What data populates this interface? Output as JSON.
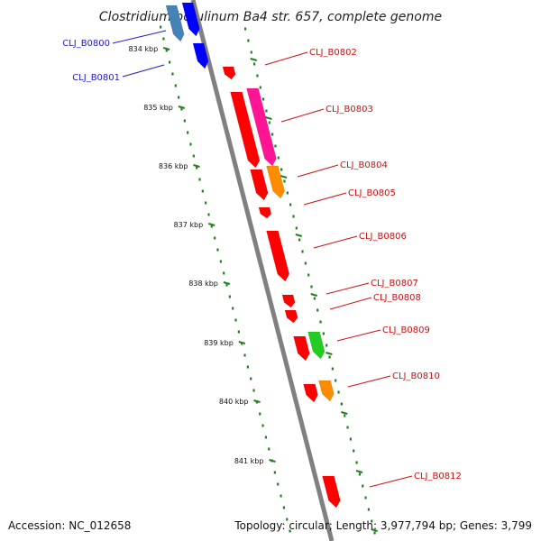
{
  "title": "Clostridium botulinum Ba4 str. 657, complete genome",
  "accession_text": "Accession: NC_012658",
  "summary_text": "Topology: circular; Length: 3,977,794 bp; Genes: 3,799",
  "colors": {
    "backbone": "#808080",
    "tick_major": "#208020",
    "tick_minor": "#208020",
    "label_blue": "#1c1ccc",
    "label_red": "#cc1111",
    "red": "#ff0000",
    "magenta": "#ff1493",
    "orange": "#ff8c00",
    "green": "#22cc22",
    "blue": "#0000ff",
    "steelblue": "#4682b4"
  },
  "scale": {
    "unit": "kbp",
    "ticks": [
      {
        "kbp": 834,
        "label": "834 kbp"
      },
      {
        "kbp": 835,
        "label": "835 kbp"
      },
      {
        "kbp": 836,
        "label": "836 kbp"
      },
      {
        "kbp": 837,
        "label": "837 kbp"
      },
      {
        "kbp": 838,
        "label": "838 kbp"
      },
      {
        "kbp": 839,
        "label": "839 kbp"
      },
      {
        "kbp": 840,
        "label": "840 kbp"
      },
      {
        "kbp": 841,
        "label": "841 kbp"
      }
    ]
  },
  "labels": [
    {
      "text": "CLJ_B0800",
      "side": "left",
      "color": "blue"
    },
    {
      "text": "CLJ_B0801",
      "side": "left",
      "color": "blue"
    },
    {
      "text": "CLJ_B0802",
      "side": "right",
      "color": "red"
    },
    {
      "text": "CLJ_B0803",
      "side": "right",
      "color": "red"
    },
    {
      "text": "CLJ_B0804",
      "side": "right",
      "color": "red"
    },
    {
      "text": "CLJ_B0805",
      "side": "right",
      "color": "red"
    },
    {
      "text": "CLJ_B0806",
      "side": "right",
      "color": "red"
    },
    {
      "text": "CLJ_B0807",
      "side": "right",
      "color": "red"
    },
    {
      "text": "CLJ_B0808",
      "side": "right",
      "color": "red"
    },
    {
      "text": "CLJ_B0809",
      "side": "right",
      "color": "red"
    },
    {
      "text": "CLJ_B0810",
      "side": "right",
      "color": "red"
    },
    {
      "text": "CLJ_B0812",
      "side": "right",
      "color": "red"
    }
  ]
}
